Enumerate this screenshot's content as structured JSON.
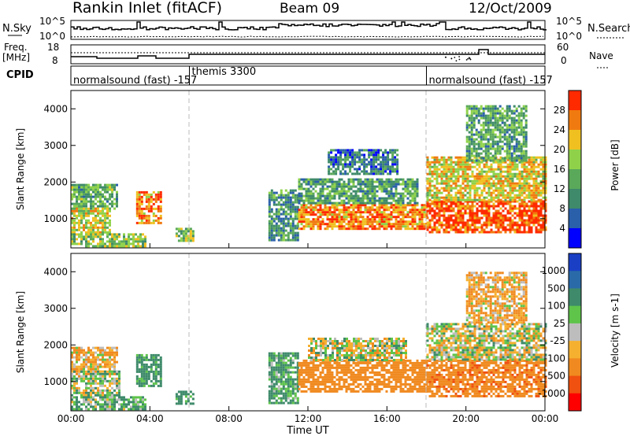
{
  "header": {
    "station": "Rankin Inlet (fitACF)",
    "beam": "Beam 09",
    "date": "12/Oct/2009"
  },
  "strips": {
    "nsky_label": "N.Sky",
    "nsky_ticks": [
      "10^5",
      "10^0"
    ],
    "nsearch_label": "N.Search",
    "nsearch_ticks": [
      "10^5",
      "10^0"
    ],
    "freq_label": "Freq.",
    "freq_unit": "[MHz]",
    "freq_ticks": [
      "18",
      "8"
    ],
    "nave_label": "Nave",
    "nave_ticks": [
      "60",
      "0"
    ],
    "cpid_label": "CPID"
  },
  "cpid_segments": [
    {
      "label": "normalsound (fast) -157",
      "start_hour": 0,
      "end_hour": 6
    },
    {
      "label": "themis 3300",
      "start_hour": 6,
      "end_hour": 18
    },
    {
      "label": "normalsound (fast) -157",
      "start_hour": 18,
      "end_hour": 24
    }
  ],
  "colors": {
    "power_scale": [
      "#0000ff",
      "#2a5faa",
      "#3e8a6a",
      "#5aa85a",
      "#8fd24a",
      "#f0c020",
      "#f07a10",
      "#ff2a00"
    ],
    "velocity_scale": [
      "#1a3fc4",
      "#2a6aa8",
      "#3e8a6a",
      "#5ec44a",
      "#bdbdbd",
      "#f5b030",
      "#f08a20",
      "#f05010",
      "#ff0000"
    ]
  },
  "chart_data": [
    {
      "type": "heatmap",
      "panel": "power",
      "xlabel": "",
      "ylabel": "Slant Range [km]",
      "x_unit": "hour UT",
      "xlim": [
        0,
        24
      ],
      "ylim": [
        200,
        4500
      ],
      "yticks": [
        1000,
        2000,
        3000,
        4000
      ],
      "colorbar": {
        "label": "Power [dB]",
        "tick_labels": [
          "4",
          "8",
          "12",
          "16",
          "20",
          "24",
          "28"
        ],
        "range": [
          0,
          30
        ]
      },
      "regions": [
        {
          "x": [
            0,
            2.3
          ],
          "y": [
            1300,
            1950
          ],
          "value": 13
        },
        {
          "x": [
            0,
            2.0
          ],
          "y": [
            600,
            1300
          ],
          "value": 18
        },
        {
          "x": [
            0,
            3.8
          ],
          "y": [
            250,
            600
          ],
          "value": 16
        },
        {
          "x": [
            3.3,
            4.6
          ],
          "y": [
            900,
            1750
          ],
          "value": 24
        },
        {
          "x": [
            5.3,
            6.2
          ],
          "y": [
            400,
            750
          ],
          "value": 16
        },
        {
          "x": [
            10.0,
            11.5
          ],
          "y": [
            400,
            1800
          ],
          "value": 10
        },
        {
          "x": [
            11.5,
            18.0
          ],
          "y": [
            700,
            1400
          ],
          "value": 24
        },
        {
          "x": [
            11.5,
            17.5
          ],
          "y": [
            1400,
            2100
          ],
          "value": 12
        },
        {
          "x": [
            13.0,
            16.5
          ],
          "y": [
            2200,
            2900
          ],
          "value": 8
        },
        {
          "x": [
            18.0,
            24.0
          ],
          "y": [
            600,
            1500
          ],
          "value": 27
        },
        {
          "x": [
            18.0,
            24.0
          ],
          "y": [
            1500,
            2700
          ],
          "value": 20
        },
        {
          "x": [
            20.0,
            23.0
          ],
          "y": [
            2600,
            4100
          ],
          "value": 12
        }
      ]
    },
    {
      "type": "heatmap",
      "panel": "velocity",
      "xlabel": "Time UT",
      "ylabel": "Slant Range [km]",
      "x_unit": "hour UT",
      "xlim": [
        0,
        24
      ],
      "ylim": [
        200,
        4500
      ],
      "yticks": [
        1000,
        2000,
        3000,
        4000
      ],
      "xtick_labels": [
        "00:00",
        "04:00",
        "08:00",
        "12:00",
        "16:00",
        "20:00",
        "00:00"
      ],
      "colorbar": {
        "label": "Velocity [m s-1]",
        "tick_labels": [
          "1000",
          "500",
          "100",
          "25",
          "-25",
          "-100",
          "-500",
          "-1000"
        ]
      },
      "regions": [
        {
          "x": [
            0,
            2.3
          ],
          "y": [
            1300,
            1950
          ],
          "value": -100
        },
        {
          "x": [
            0,
            2.5
          ],
          "y": [
            600,
            1300
          ],
          "value": 25
        },
        {
          "x": [
            0,
            3.8
          ],
          "y": [
            250,
            600
          ],
          "value": 100
        },
        {
          "x": [
            3.3,
            4.6
          ],
          "y": [
            900,
            1750
          ],
          "value": 200
        },
        {
          "x": [
            5.3,
            6.2
          ],
          "y": [
            400,
            750
          ],
          "value": 200
        },
        {
          "x": [
            10.0,
            11.5
          ],
          "y": [
            400,
            1800
          ],
          "value": 150
        },
        {
          "x": [
            11.5,
            18.0
          ],
          "y": [
            700,
            1600
          ],
          "value": -300
        },
        {
          "x": [
            12.0,
            17.0
          ],
          "y": [
            1600,
            2200
          ],
          "value": 0
        },
        {
          "x": [
            18.0,
            24.0
          ],
          "y": [
            600,
            1600
          ],
          "value": -400
        },
        {
          "x": [
            18.0,
            24.0
          ],
          "y": [
            1600,
            2600
          ],
          "value": 0
        },
        {
          "x": [
            20.0,
            23.0
          ],
          "y": [
            2600,
            4000
          ],
          "value": -100
        }
      ]
    }
  ]
}
